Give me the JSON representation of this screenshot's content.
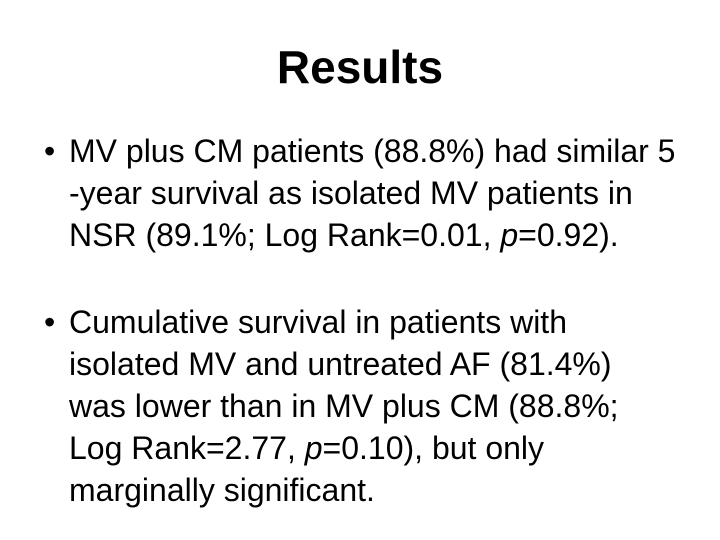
{
  "slide": {
    "title": "Results",
    "bullet_glyph": "•",
    "colors": {
      "background": "#ffffff",
      "text": "#000000"
    },
    "bullets": [
      {
        "lines": [
          [
            {
              "text": "MV plus CM patients (88.8%) had similar 5"
            }
          ],
          [
            {
              "text": "-year survival as isolated MV patients in"
            }
          ],
          [
            {
              "text": "NSR (89.1%; Log Rank=0.01, "
            },
            {
              "text": "p",
              "italic": true
            },
            {
              "text": "=0.92)."
            }
          ]
        ]
      },
      {
        "lines": [
          [
            {
              "text": "Cumulative survival in patients with"
            }
          ],
          [
            {
              "text": "isolated MV and untreated AF (81.4%)"
            }
          ],
          [
            {
              "text": "was lower than in MV plus CM (88.8%;"
            }
          ],
          [
            {
              "text": "Log Rank=2.77, "
            },
            {
              "text": "p",
              "italic": true
            },
            {
              "text": "=0.10), but only"
            }
          ],
          [
            {
              "text": "marginally significant."
            }
          ]
        ]
      }
    ]
  }
}
